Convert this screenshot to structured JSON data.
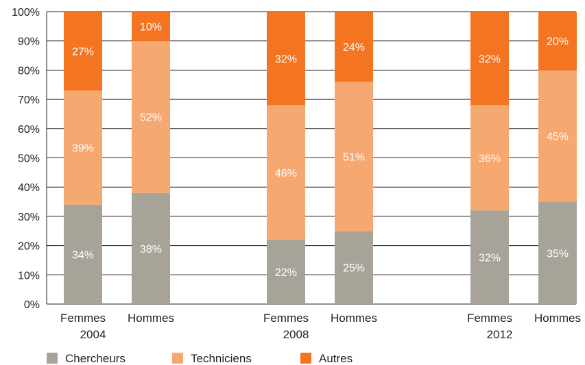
{
  "chart_data": {
    "type": "bar",
    "stacked": true,
    "percent": true,
    "ylim": [
      0,
      100
    ],
    "yticks": [
      "0%",
      "10%",
      "20%",
      "30%",
      "40%",
      "50%",
      "60%",
      "70%",
      "80%",
      "90%",
      "100%"
    ],
    "grid": true,
    "legend_position": "bottom-left",
    "groups": [
      "2004",
      "2008",
      "2012"
    ],
    "categories": [
      "Femmes",
      "Hommes",
      "Femmes",
      "Hommes",
      "Femmes",
      "Hommes"
    ],
    "series": [
      {
        "name": "Chercheurs",
        "color": "#a8a398",
        "values": [
          34,
          38,
          22,
          25,
          32,
          35
        ],
        "labels": [
          "34%",
          "38%",
          "22%",
          "25%",
          "32%",
          "35%"
        ]
      },
      {
        "name": "Techniciens",
        "color": "#f6a871",
        "values": [
          39,
          52,
          46,
          51,
          36,
          45
        ],
        "labels": [
          "39%",
          "52%",
          "46%",
          "51%",
          "36%",
          "45%"
        ]
      },
      {
        "name": "Autres",
        "color": "#f37521",
        "values": [
          27,
          10,
          32,
          24,
          32,
          20
        ],
        "labels": [
          "27%",
          "10%",
          "32%",
          "24%",
          "32%",
          "20%"
        ]
      }
    ]
  }
}
